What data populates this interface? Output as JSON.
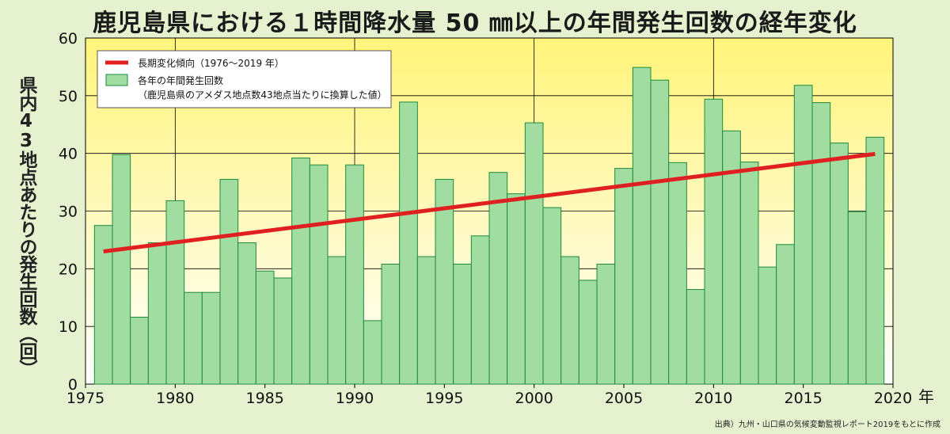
{
  "title": "鹿児島県における１時間降水量 50 ㎜以上の年間発生回数の経年変化",
  "y_axis_label": "県内43地点あたりの発生回数（回）",
  "x_unit": "年",
  "source": "出典）九州・山口県の気候変動監視レポート2019をもとに作成",
  "legend": {
    "trend_label": "長期変化傾向（1976〜2019 年）",
    "bar_label": "各年の年間発生回数",
    "bar_sublabel": "（鹿児島県のアメダス地点数43地点当たりに換算した値）"
  },
  "colors": {
    "bar_fill": "#a1dca0",
    "bar_stroke": "#1e8a3c",
    "trend": "#e02020",
    "bg_top": "#fff47a",
    "bg_bottom": "#ffffff"
  },
  "chart_data": {
    "type": "bar",
    "x": [
      1976,
      1977,
      1978,
      1979,
      1980,
      1981,
      1982,
      1983,
      1984,
      1985,
      1986,
      1987,
      1988,
      1989,
      1990,
      1991,
      1992,
      1993,
      1994,
      1995,
      1996,
      1997,
      1998,
      1999,
      2000,
      2001,
      2002,
      2003,
      2004,
      2005,
      2006,
      2007,
      2008,
      2009,
      2010,
      2011,
      2012,
      2013,
      2014,
      2015,
      2016,
      2017,
      2018,
      2019
    ],
    "values": [
      27.5,
      39.8,
      11.6,
      24.5,
      31.8,
      15.9,
      15.9,
      35.5,
      24.5,
      19.6,
      18.4,
      39.2,
      38.0,
      22.1,
      38.0,
      11.0,
      20.8,
      48.9,
      22.1,
      35.5,
      20.8,
      25.7,
      36.7,
      33.0,
      45.3,
      30.6,
      22.1,
      18.0,
      20.8,
      37.4,
      54.9,
      52.7,
      38.4,
      16.4,
      49.4,
      43.9,
      38.5,
      20.3,
      24.2,
      51.8,
      48.8,
      41.8,
      29.9,
      42.8
    ],
    "trend": {
      "name": "長期変化傾向（1976〜2019 年）",
      "x": [
        1976,
        2019
      ],
      "y": [
        23.0,
        39.9
      ]
    },
    "xlim": [
      1975,
      2020
    ],
    "ylim": [
      0,
      60
    ],
    "xticks": [
      1975,
      1980,
      1985,
      1990,
      1995,
      2000,
      2005,
      2010,
      2015,
      2020
    ],
    "yticks": [
      0,
      10,
      20,
      30,
      40,
      50,
      60
    ],
    "vertical_grid": [
      1980,
      1990,
      2000,
      2010
    ],
    "legend_position": "top-left"
  }
}
